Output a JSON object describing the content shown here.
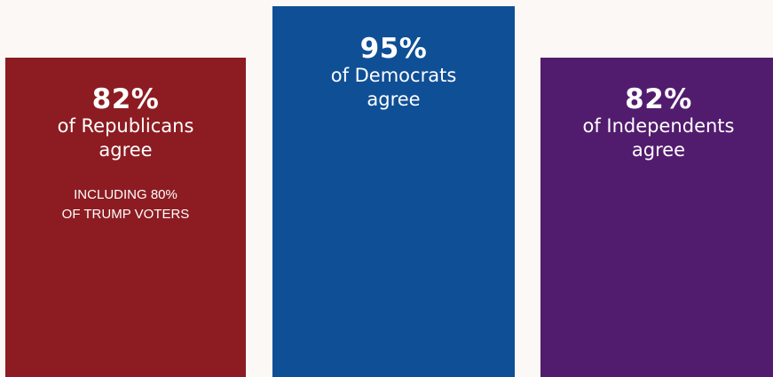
{
  "chart_data": {
    "type": "bar",
    "categories": [
      "Republicans",
      "Democrats",
      "Independents"
    ],
    "values": [
      82,
      95,
      82
    ],
    "unit": "%",
    "ylim": [
      0,
      100
    ],
    "colors": [
      "#8c1c22",
      "#0f4f96",
      "#521c6e"
    ],
    "bars": [
      {
        "value": 82,
        "percent_label": "82%",
        "line1": "of Republicans",
        "line2": "agree",
        "note_line1": "INCLUDING 80%",
        "note_line2": "OF TRUMP VOTERS",
        "color": "#8c1c22"
      },
      {
        "value": 95,
        "percent_label": "95%",
        "line1": "of Democrats",
        "line2": "agree",
        "color": "#0f4f96"
      },
      {
        "value": 82,
        "percent_label": "82%",
        "line1": "of Independents",
        "line2": "agree",
        "color": "#521c6e"
      }
    ]
  }
}
